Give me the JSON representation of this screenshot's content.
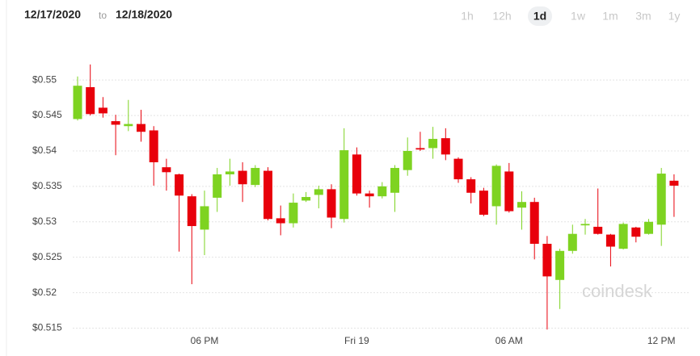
{
  "header": {
    "from": "12/17/2020",
    "separator": "to",
    "to": "12/18/2020"
  },
  "range": {
    "options": [
      "1h",
      "12h",
      "1d",
      "1w",
      "1m",
      "3m",
      "1y"
    ],
    "selected": "1d"
  },
  "chart_data": {
    "type": "candlestick",
    "watermark": "coindesk",
    "up_color": "#7ed321",
    "down_color": "#e8000b",
    "grid": true,
    "categories": [
      null,
      null,
      null,
      null,
      null,
      null,
      null,
      null,
      null,
      null,
      "06 PM",
      null,
      null,
      null,
      null,
      null,
      null,
      null,
      null,
      null,
      null,
      null,
      "Fri 19",
      null,
      null,
      null,
      null,
      null,
      null,
      null,
      null,
      null,
      null,
      null,
      "06 AM",
      null,
      null,
      null,
      null,
      null,
      null,
      null,
      null,
      null,
      null,
      null,
      "12 PM",
      null
    ],
    "open": [
      0.5445,
      0.549,
      0.5461,
      0.5442,
      0.5435,
      0.5438,
      0.5429,
      0.5377,
      0.5367,
      0.5336,
      0.5289,
      0.5334,
      0.5367,
      0.5372,
      0.5352,
      0.5372,
      0.5305,
      0.5298,
      0.533,
      0.5338,
      0.5346,
      0.5304,
      0.5395,
      0.534,
      0.5336,
      0.5341,
      0.5373,
      0.5404,
      0.5404,
      0.5418,
      0.5389,
      0.536,
      0.5344,
      0.5322,
      0.5371,
      0.532,
      0.5328,
      0.5269,
      0.5218,
      0.5259,
      0.5295,
      0.5293,
      0.5282,
      0.5262,
      0.5292,
      0.5283,
      0.5296,
      0.5358
    ],
    "high": [
      0.5505,
      0.5522,
      0.5476,
      0.5451,
      0.5472,
      0.5458,
      0.5435,
      0.5389,
      0.5368,
      0.5339,
      0.5344,
      0.5376,
      0.5389,
      0.5384,
      0.538,
      0.5377,
      0.5323,
      0.534,
      0.5342,
      0.5351,
      0.5353,
      0.5432,
      0.5405,
      0.5344,
      0.5356,
      0.538,
      0.5419,
      0.5427,
      0.5434,
      0.5432,
      0.5391,
      0.5363,
      0.5348,
      0.5381,
      0.5383,
      0.5343,
      0.5334,
      0.528,
      0.5262,
      0.5296,
      0.5304,
      0.5347,
      0.5283,
      0.5299,
      0.5293,
      0.5304,
      0.5376,
      0.5367
    ],
    "low": [
      0.5443,
      0.545,
      0.5447,
      0.5394,
      0.5428,
      0.5413,
      0.5351,
      0.5344,
      0.5258,
      0.5212,
      0.5253,
      0.5314,
      0.5351,
      0.5328,
      0.5349,
      0.5302,
      0.5281,
      0.5292,
      0.5328,
      0.5319,
      0.5291,
      0.5299,
      0.5337,
      0.532,
      0.5333,
      0.5314,
      0.5365,
      0.54,
      0.5389,
      0.5387,
      0.5355,
      0.5326,
      0.5308,
      0.5296,
      0.5313,
      0.5289,
      0.5247,
      0.5148,
      0.5177,
      0.5255,
      0.5282,
      0.5282,
      0.5237,
      0.5261,
      0.5271,
      0.5282,
      0.5266,
      0.5307
    ],
    "close": [
      0.5492,
      0.5452,
      0.5453,
      0.5437,
      0.5438,
      0.5427,
      0.5384,
      0.537,
      0.5337,
      0.5294,
      0.5322,
      0.5367,
      0.5371,
      0.5353,
      0.5376,
      0.5304,
      0.5298,
      0.5327,
      0.5335,
      0.5346,
      0.5306,
      0.5401,
      0.534,
      0.5336,
      0.535,
      0.5376,
      0.54,
      0.5402,
      0.5417,
      0.5395,
      0.536,
      0.5341,
      0.531,
      0.5379,
      0.5315,
      0.5328,
      0.5269,
      0.5223,
      0.5259,
      0.5283,
      0.5297,
      0.5283,
      0.5265,
      0.5297,
      0.5279,
      0.53,
      0.5368,
      0.5351
    ],
    "ylim": [
      0.5146,
      0.5556
    ],
    "yticks": [
      {
        "value": 0.515,
        "label": "$0.515"
      },
      {
        "value": 0.52,
        "label": "$0.52"
      },
      {
        "value": 0.525,
        "label": "$0.525"
      },
      {
        "value": 0.53,
        "label": "$0.53"
      },
      {
        "value": 0.535,
        "label": "$0.535"
      },
      {
        "value": 0.54,
        "label": "$0.54"
      },
      {
        "value": 0.545,
        "label": "$0.545"
      },
      {
        "value": 0.55,
        "label": "$0.55"
      }
    ]
  }
}
